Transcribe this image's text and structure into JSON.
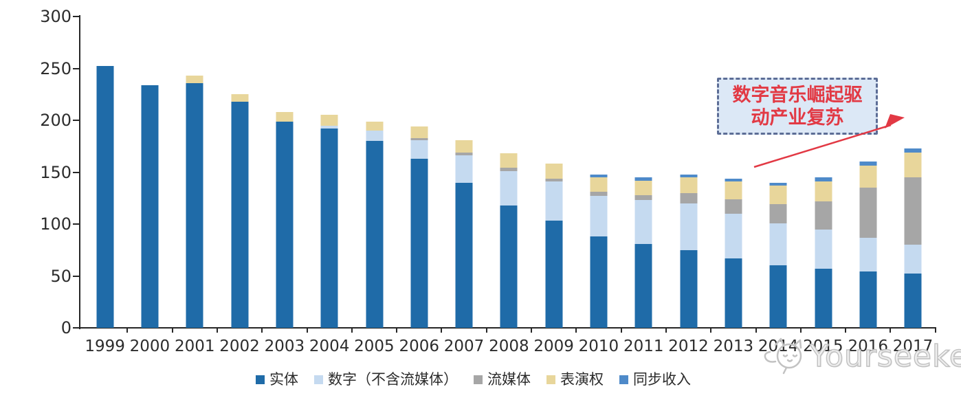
{
  "chart_data": {
    "type": "bar",
    "stacked": true,
    "title": "",
    "xlabel": "",
    "ylabel": "",
    "ylim": [
      0,
      300
    ],
    "yticks": [
      0,
      50,
      100,
      150,
      200,
      250,
      300
    ],
    "grid": false,
    "legend_position": "bottom",
    "categories": [
      "1999",
      "2000",
      "2001",
      "2002",
      "2003",
      "2004",
      "2005",
      "2006",
      "2007",
      "2008",
      "2009",
      "2010",
      "2011",
      "2012",
      "2013",
      "2014",
      "2015",
      "2016",
      "2017"
    ],
    "series": [
      {
        "name": "实体",
        "color": "#1f6ba8",
        "values": [
          252,
          234,
          236,
          218,
          199,
          192,
          180,
          163,
          140,
          118,
          103,
          88,
          81,
          75,
          67,
          60,
          57,
          54,
          52
        ]
      },
      {
        "name": "数字（不含流媒体）",
        "color": "#c5daf0",
        "values": [
          0,
          0,
          0,
          0,
          0,
          3,
          10,
          18,
          26,
          33,
          38,
          39,
          42,
          45,
          43,
          41,
          38,
          33,
          28
        ]
      },
      {
        "name": "流媒体",
        "color": "#a6a6a6",
        "values": [
          0,
          0,
          0,
          0,
          0,
          0,
          0,
          2,
          3,
          3,
          3,
          4,
          5,
          10,
          14,
          18,
          27,
          48,
          65
        ]
      },
      {
        "name": "表演权",
        "color": "#e8d69b",
        "values": [
          0,
          0,
          7,
          7,
          9,
          10,
          9,
          11,
          12,
          14,
          14,
          14,
          14,
          15,
          17,
          18,
          19,
          21,
          24
        ]
      },
      {
        "name": "同步收入",
        "color": "#4e8ac9",
        "values": [
          0,
          0,
          0,
          0,
          0,
          0,
          0,
          0,
          0,
          0,
          0,
          3,
          3,
          3,
          3,
          3,
          4,
          4,
          4
        ]
      }
    ]
  },
  "annotation": {
    "line1": "数字音乐崛起驱",
    "line2": "动产业复苏",
    "text_color": "#e23944",
    "box_border_color": "#5c6d96",
    "box_fill_color": "#dce8f6",
    "arrow_color": "#e23944"
  },
  "watermark": {
    "text": "Yourseeker",
    "icon": "cat-logo-icon",
    "color": "#c2c2c2"
  },
  "axis": {
    "line_color": "#262626",
    "label_color": "#2d2d2d"
  }
}
